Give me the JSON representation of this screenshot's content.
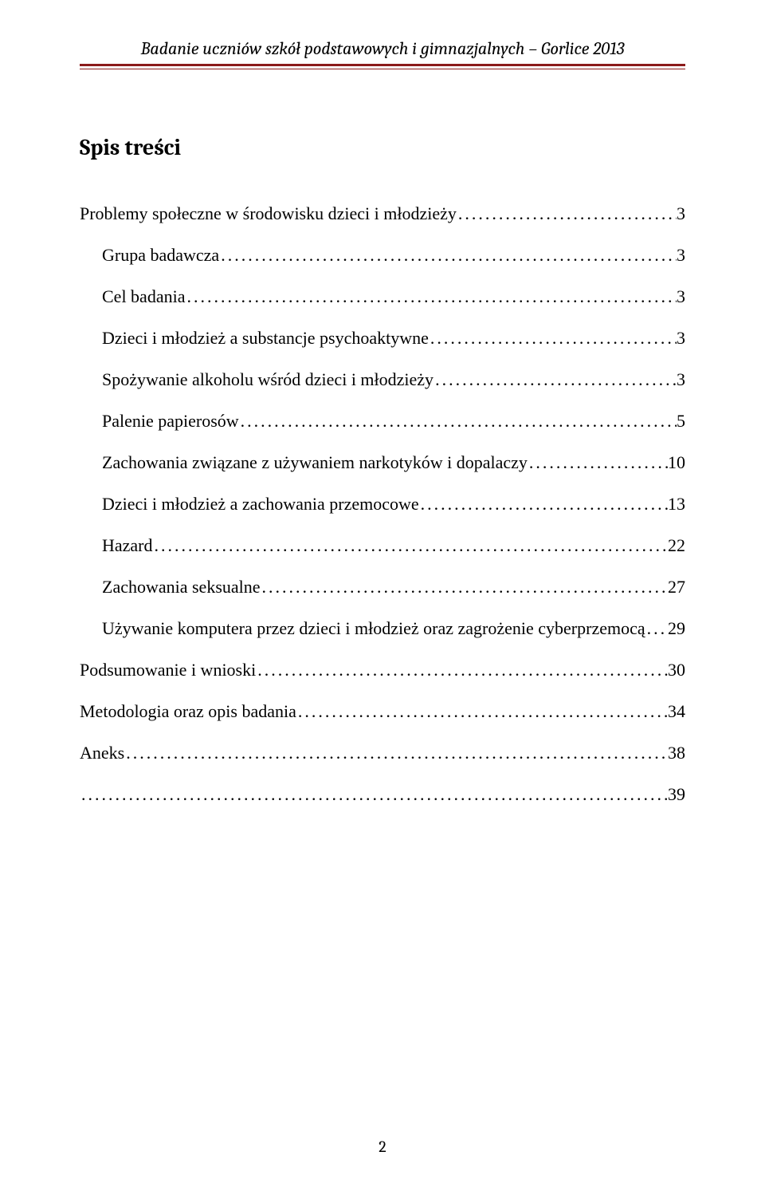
{
  "header": {
    "title": "Badanie uczniów szkół podstawowych i gimnazjalnych – Gorlice 2013",
    "rule_color": "#8b1a1a",
    "text_color": "#000000",
    "font_family": "Cambria",
    "font_style": "italic",
    "font_size_pt": 12
  },
  "toc": {
    "heading": "Spis treści",
    "heading_font_family": "Cambria",
    "heading_font_weight": "bold",
    "heading_font_size_pt": 14,
    "body_font_family": "Times New Roman",
    "body_font_size_pt": 12,
    "entries": [
      {
        "label": "Problemy społeczne w środowisku dzieci i młodzieży",
        "page": "3",
        "level": 0
      },
      {
        "label": "Grupa badawcza",
        "page": "3",
        "level": 1
      },
      {
        "label": "Cel badania",
        "page": "3",
        "level": 1
      },
      {
        "label": "Dzieci i młodzież a substancje psychoaktywne",
        "page": "3",
        "level": 1
      },
      {
        "label": "Spożywanie alkoholu wśród dzieci i młodzieży",
        "page": "3",
        "level": 1
      },
      {
        "label": "Palenie papierosów",
        "page": "5",
        "level": 1
      },
      {
        "label": "Zachowania związane z używaniem narkotyków i dopalaczy",
        "page": "10",
        "level": 1
      },
      {
        "label": "Dzieci i młodzież a zachowania przemocowe",
        "page": "13",
        "level": 1
      },
      {
        "label": "Hazard",
        "page": "22",
        "level": 1
      },
      {
        "label": "Zachowania seksualne",
        "page": "27",
        "level": 1
      },
      {
        "label": "Używanie komputera przez dzieci i młodzież oraz zagrożenie cyberprzemocą",
        "page": "29",
        "level": 1
      },
      {
        "label": "Podsumowanie i wnioski",
        "page": "30",
        "level": 0
      },
      {
        "label": "Metodologia oraz opis badania",
        "page": "34",
        "level": 0
      },
      {
        "label": "Aneks",
        "page": "38",
        "level": 0
      },
      {
        "label": "",
        "page": "39",
        "level": 0,
        "hidden_label": true
      }
    ]
  },
  "page_number": "2",
  "colors": {
    "background": "#ffffff",
    "text": "#000000",
    "accent_rule": "#8b1a1a"
  }
}
